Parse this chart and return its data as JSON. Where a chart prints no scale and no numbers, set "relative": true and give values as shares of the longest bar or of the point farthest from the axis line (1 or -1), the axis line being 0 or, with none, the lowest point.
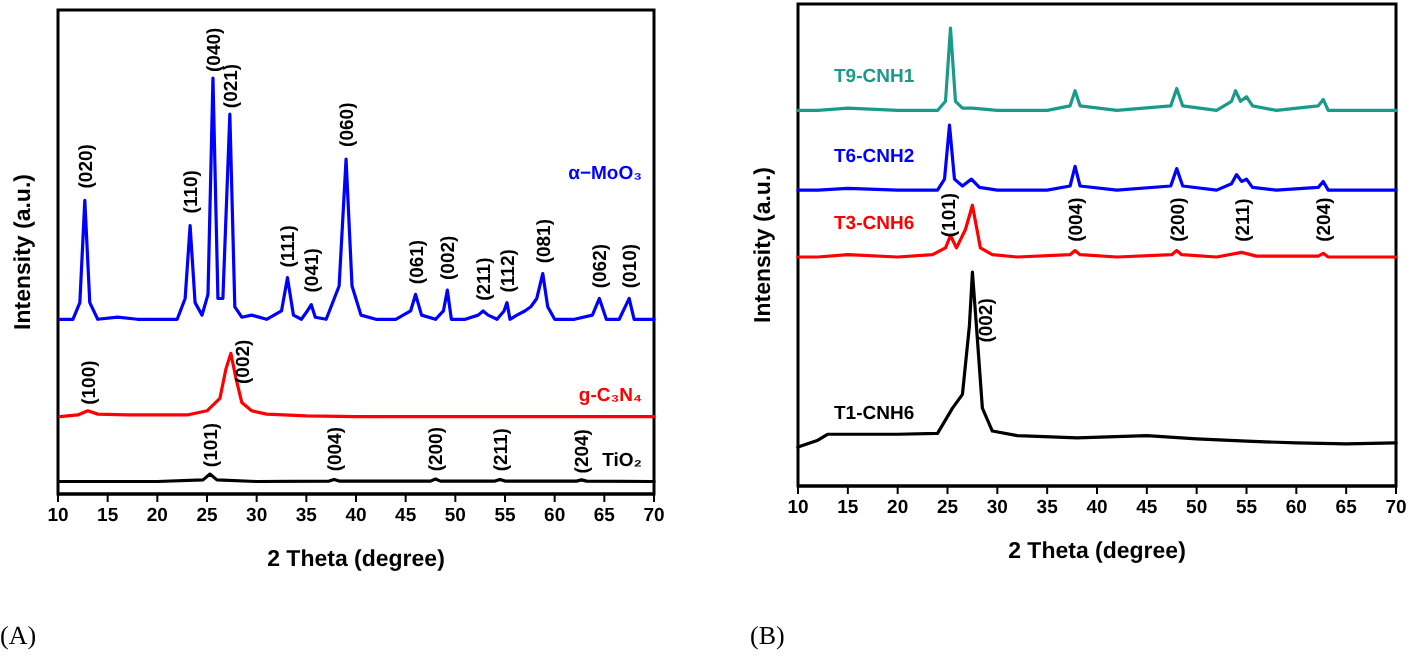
{
  "chart_data": [
    {
      "type": "line",
      "relative": true,
      "xlabel": "2 Theta (degree)",
      "ylabel": "Intensity (a.u.)",
      "xlim": [
        10,
        70
      ],
      "xticks": [
        10,
        15,
        20,
        25,
        30,
        35,
        40,
        45,
        50,
        55,
        60,
        65,
        70
      ],
      "series": [
        {
          "name": "α−MoO₃",
          "color": "#0000ff",
          "x": [
            10.2,
            11.5,
            12.2,
            12.7,
            13.2,
            14,
            16,
            18,
            20,
            22,
            22.8,
            23.3,
            23.8,
            24.5,
            25.1,
            25.6,
            26.1,
            26.6,
            27.3,
            27.8,
            28.5,
            29.5,
            31,
            32.5,
            33.1,
            33.7,
            34.5,
            35.1,
            35.5,
            35.9,
            37,
            38.3,
            39,
            39.6,
            40.5,
            42,
            44,
            45.5,
            46,
            46.6,
            48,
            48.8,
            49.2,
            49.6,
            51,
            52.3,
            52.8,
            53.3,
            54.2,
            54.9,
            55.2,
            55.5,
            56.2,
            57,
            57.6,
            58.2,
            58.8,
            59.3,
            60,
            62,
            63.8,
            64.5,
            65.2,
            66.5,
            67.3,
            67.5,
            68,
            70
          ],
          "values": [
            0.42,
            0.42,
            0.46,
            0.706,
            0.46,
            0.42,
            0.425,
            0.42,
            0.42,
            0.42,
            0.47,
            0.645,
            0.46,
            0.43,
            0.48,
            1.0,
            0.47,
            0.47,
            0.913,
            0.45,
            0.425,
            0.43,
            0.42,
            0.44,
            0.52,
            0.43,
            0.42,
            0.44,
            0.455,
            0.425,
            0.42,
            0.5,
            0.805,
            0.5,
            0.43,
            0.42,
            0.42,
            0.44,
            0.48,
            0.43,
            0.42,
            0.44,
            0.49,
            0.42,
            0.42,
            0.43,
            0.44,
            0.43,
            0.42,
            0.44,
            0.46,
            0.42,
            0.43,
            0.44,
            0.45,
            0.47,
            0.53,
            0.45,
            0.42,
            0.42,
            0.43,
            0.47,
            0.42,
            0.42,
            0.46,
            0.47,
            0.42,
            0.42
          ]
        },
        {
          "name": "g-C₃N₄",
          "color": "#ff0000",
          "x": [
            10.2,
            12,
            13,
            14,
            17,
            20,
            23,
            25,
            26.3,
            26.9,
            27.4,
            27.9,
            28.5,
            29.5,
            31,
            35,
            40,
            50,
            60,
            70
          ],
          "values": [
            0.186,
            0.19,
            0.2,
            0.192,
            0.19,
            0.19,
            0.19,
            0.2,
            0.23,
            0.3,
            0.338,
            0.28,
            0.22,
            0.2,
            0.192,
            0.188,
            0.186,
            0.186,
            0.186,
            0.186
          ]
        },
        {
          "name": "TiO₂",
          "color": "#000000",
          "x": [
            10.2,
            15,
            20,
            24.6,
            25.3,
            26,
            30,
            37.3,
            37.8,
            38.3,
            47.5,
            48,
            48.5,
            54,
            54.5,
            55,
            62.2,
            62.7,
            63.2,
            70
          ],
          "values": [
            0.03,
            0.03,
            0.03,
            0.034,
            0.048,
            0.034,
            0.03,
            0.031,
            0.035,
            0.031,
            0.031,
            0.036,
            0.031,
            0.031,
            0.035,
            0.031,
            0.031,
            0.034,
            0.031,
            0.03
          ]
        }
      ],
      "annotations": [
        {
          "text": "(020)",
          "x": 12.7,
          "y": 0.72
        },
        {
          "text": "(110)",
          "x": 23.3,
          "y": 0.66
        },
        {
          "text": "(040)",
          "x": 25.6,
          "y": 1.0
        },
        {
          "text": "(021)",
          "x": 27.3,
          "y": 0.913
        },
        {
          "text": "(111)",
          "x": 33.1,
          "y": 0.53
        },
        {
          "text": "(041)",
          "x": 35.5,
          "y": 0.47
        },
        {
          "text": "(060)",
          "x": 39,
          "y": 0.82
        },
        {
          "text": "(061)",
          "x": 46,
          "y": 0.49
        },
        {
          "text": "(002)",
          "x": 49.2,
          "y": 0.5
        },
        {
          "text": "(211)",
          "x": 52.8,
          "y": 0.45
        },
        {
          "text": "(112)",
          "x": 55.2,
          "y": 0.47
        },
        {
          "text": "(081)",
          "x": 58.8,
          "y": 0.54
        },
        {
          "text": "(062)",
          "x": 64.5,
          "y": 0.48
        },
        {
          "text": "(010)",
          "x": 67.5,
          "y": 0.48
        },
        {
          "text": "(100)",
          "x": 13,
          "y": 0.2
        },
        {
          "text": "(002)",
          "x": 28.5,
          "y": 0.25
        },
        {
          "text": "(101)",
          "x": 25.3,
          "y": 0.05
        },
        {
          "text": "(004)",
          "x": 37.8,
          "y": 0.04
        },
        {
          "text": "(200)",
          "x": 48,
          "y": 0.04
        },
        {
          "text": "(211)",
          "x": 54.5,
          "y": 0.04
        },
        {
          "text": "(204)",
          "x": 62.7,
          "y": 0.035
        },
        "(A)"
      ]
    },
    {
      "type": "line",
      "relative": true,
      "xlabel": "2 Theta (degree)",
      "ylabel": "Intensity (a.u.)",
      "xlim": [
        10,
        70
      ],
      "xticks": [
        10,
        15,
        20,
        25,
        30,
        35,
        40,
        45,
        50,
        55,
        60,
        65,
        70
      ],
      "series": [
        {
          "name": "T9-CNH1",
          "color": "#1a9a8a",
          "x": [
            10,
            12,
            15,
            20,
            24,
            24.8,
            25.3,
            25.8,
            26.5,
            27.5,
            30,
            35,
            37.3,
            37.8,
            38.3,
            42,
            47.4,
            48,
            48.6,
            52,
            53.5,
            53.9,
            54.4,
            55,
            55.6,
            58,
            62.2,
            62.7,
            63.2,
            66,
            68,
            70
          ],
          "values": [
            0.82,
            0.82,
            0.825,
            0.82,
            0.82,
            0.84,
            1.0,
            0.84,
            0.825,
            0.825,
            0.82,
            0.82,
            0.83,
            0.863,
            0.83,
            0.82,
            0.83,
            0.868,
            0.83,
            0.82,
            0.84,
            0.863,
            0.84,
            0.85,
            0.83,
            0.82,
            0.83,
            0.844,
            0.82,
            0.82,
            0.82,
            0.82
          ]
        },
        {
          "name": "T6-CNH2",
          "color": "#0000ff",
          "x": [
            10,
            12,
            15,
            20,
            24,
            24.7,
            25.2,
            25.7,
            26.5,
            27.4,
            28.2,
            30,
            35,
            37.3,
            37.8,
            38.3,
            42,
            47.4,
            48,
            48.6,
            52,
            53.5,
            54,
            54.5,
            55,
            55.6,
            58,
            62.2,
            62.7,
            63.2,
            66,
            70
          ],
          "values": [
            0.646,
            0.646,
            0.65,
            0.646,
            0.646,
            0.67,
            0.788,
            0.67,
            0.655,
            0.67,
            0.652,
            0.646,
            0.646,
            0.655,
            0.698,
            0.655,
            0.646,
            0.655,
            0.693,
            0.655,
            0.646,
            0.66,
            0.68,
            0.665,
            0.67,
            0.652,
            0.646,
            0.652,
            0.665,
            0.646,
            0.646,
            0.646
          ]
        },
        {
          "name": "T3-CNH6",
          "color": "#ff0000",
          "x": [
            10,
            12,
            15,
            20,
            23.5,
            24.8,
            25.3,
            25.9,
            26.8,
            27.5,
            28.3,
            29.5,
            32,
            37.3,
            37.8,
            38.3,
            42,
            47.5,
            48,
            48.5,
            52,
            54.5,
            56,
            62.2,
            62.7,
            63.2,
            66,
            70
          ],
          "values": [
            0.5,
            0.5,
            0.505,
            0.5,
            0.505,
            0.52,
            0.547,
            0.52,
            0.56,
            0.613,
            0.52,
            0.505,
            0.5,
            0.505,
            0.514,
            0.505,
            0.5,
            0.505,
            0.514,
            0.505,
            0.5,
            0.51,
            0.502,
            0.502,
            0.508,
            0.5,
            0.5,
            0.5
          ]
        },
        {
          "name": "T1-CNH6",
          "color": "#000000",
          "x": [
            10,
            12,
            13,
            20,
            24,
            25.5,
            26.5,
            27.2,
            27.5,
            27.9,
            28.5,
            29.5,
            32,
            38,
            45,
            50,
            55,
            60,
            65,
            70
          ],
          "values": [
            0.085,
            0.1,
            0.113,
            0.113,
            0.115,
            0.17,
            0.2,
            0.35,
            0.467,
            0.35,
            0.17,
            0.12,
            0.11,
            0.105,
            0.11,
            0.103,
            0.098,
            0.094,
            0.092,
            0.094
          ]
        }
      ],
      "annotations": [
        {
          "text": "(101)",
          "x": 25,
          "y": 0.53
        },
        {
          "text": "(002)",
          "x": 28.8,
          "y": 0.3
        },
        {
          "text": "(004)",
          "x": 37.8,
          "y": 0.52
        },
        {
          "text": "(200)",
          "x": 48,
          "y": 0.52
        },
        {
          "text": "(211)",
          "x": 54.5,
          "y": 0.52
        },
        {
          "text": "(204)",
          "x": 62.7,
          "y": 0.52
        },
        "(B)"
      ]
    }
  ]
}
